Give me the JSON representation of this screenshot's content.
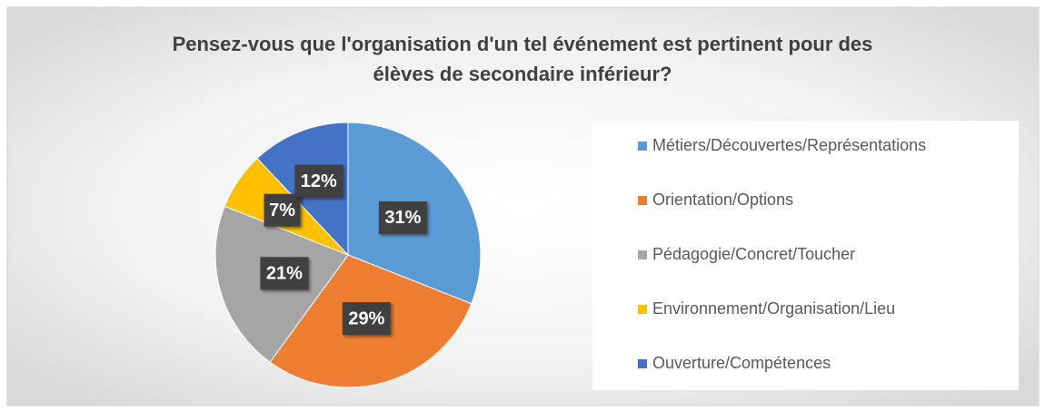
{
  "chart_data": {
    "type": "pie",
    "title": "Pensez-vous que l'organisation d'un tel événement est pertinent pour des élèves de secondaire inférieur?",
    "categories": [
      "Métiers/Découvertes/Représentations",
      "Orientation/Options",
      "Pédagogie/Concret/Toucher",
      "Environnement/Organisation/Lieu",
      "Ouverture/Compétences"
    ],
    "values": [
      31,
      29,
      21,
      7,
      12
    ],
    "value_labels": [
      "31%",
      "29%",
      "21%",
      "7%",
      "12%"
    ],
    "colors": [
      "#5b9bd5",
      "#ed7d31",
      "#a5a5a5",
      "#ffc000",
      "#4472c4"
    ],
    "legend": "right"
  }
}
